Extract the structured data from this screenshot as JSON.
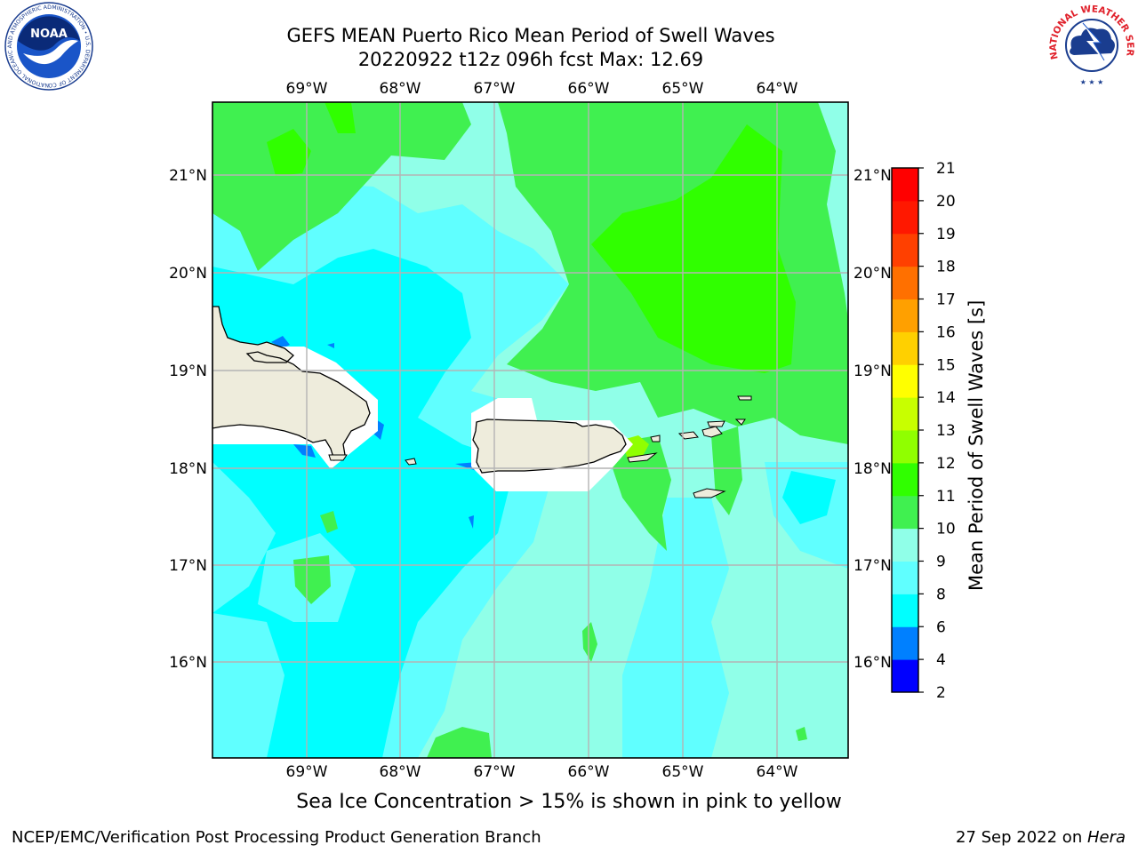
{
  "header": {
    "title_line1": "GEFS MEAN Puerto Rico Mean Period of Swell Waves",
    "title_line2": "20220922 t12z 096h fcst   Max: 12.69"
  },
  "logos": {
    "noaa": {
      "text": "NOAA",
      "ring": "NATIONAL OCEANIC AND ATMOSPHERIC ADMINISTRATION • U.S. DEPARTMENT OF COMMERCE"
    },
    "nws": {
      "ring": "NATIONAL WEATHER SERVICE"
    }
  },
  "map": {
    "lon_ticks": [
      "69°W",
      "68°W",
      "67°W",
      "66°W",
      "65°W",
      "64°W"
    ],
    "lat_ticks": [
      "21°N",
      "20°N",
      "19°N",
      "18°N",
      "17°N",
      "16°N"
    ],
    "colors": {
      "land": "#eeecdc",
      "grid": "#b4b4b4"
    }
  },
  "colorbar": {
    "label": "Mean Period of Swell Waves [s]",
    "ticks": [
      "2",
      "4",
      "6",
      "8",
      "9",
      "10",
      "11",
      "12",
      "13",
      "14",
      "15",
      "16",
      "17",
      "18",
      "19",
      "20",
      "21"
    ],
    "colors": [
      "#0000ff",
      "#0080ff",
      "#00ffff",
      "#60ffff",
      "#90ffe8",
      "#40f050",
      "#30ff00",
      "#90ff00",
      "#c8ff00",
      "#ffff00",
      "#ffd000",
      "#ffa000",
      "#ff7000",
      "#ff4000",
      "#ff1800",
      "#ff0000"
    ]
  },
  "caption": "Sea Ice Concentration > 15% is shown in pink to yellow",
  "footer": {
    "left": "NCEP/EMC/Verification Post Processing Product Generation Branch",
    "right_prefix": "27 Sep 2022 on ",
    "right_machine": "Hera"
  }
}
